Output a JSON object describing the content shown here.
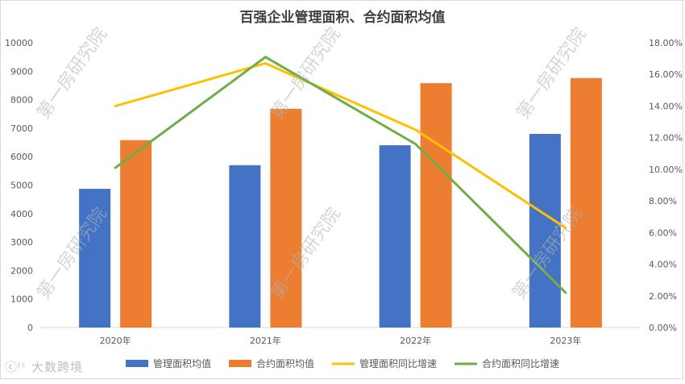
{
  "chart_data": {
    "type": "bar",
    "title": "百强企业管理面积、合约面积均值",
    "categories": [
      "2020年",
      "2021年",
      "2022年",
      "2023年"
    ],
    "series": [
      {
        "name": "管理面积均值",
        "type": "bar",
        "axis": "left",
        "color": "#4472C4",
        "values": [
          4870,
          5700,
          6400,
          6800
        ]
      },
      {
        "name": "合约面积均值",
        "type": "bar",
        "axis": "left",
        "color": "#ED7D31",
        "values": [
          6580,
          7680,
          8580,
          8760
        ]
      },
      {
        "name": "管理面积同比增速",
        "type": "line",
        "axis": "right",
        "color": "#FFC000",
        "values": [
          0.14,
          0.167,
          0.125,
          0.063
        ]
      },
      {
        "name": "合约面积同比增速",
        "type": "line",
        "axis": "right",
        "color": "#70AD47",
        "values": [
          0.101,
          0.171,
          0.116,
          0.022
        ]
      }
    ],
    "y_left": {
      "min": 0,
      "max": 10000,
      "step": 1000,
      "ticks": [
        "0",
        "1000",
        "2000",
        "3000",
        "4000",
        "5000",
        "6000",
        "7000",
        "8000",
        "9000",
        "10000"
      ]
    },
    "y_right": {
      "min": 0,
      "max": 0.18,
      "step": 0.02,
      "ticks": [
        "0.00%",
        "2.00%",
        "4.00%",
        "6.00%",
        "8.00%",
        "10.00%",
        "12.00%",
        "14.00%",
        "16.00%",
        "18.00%"
      ]
    },
    "grid": false,
    "legend_position": "bottom"
  },
  "watermark": "第一房研究院",
  "logo_text": "大数跨境"
}
